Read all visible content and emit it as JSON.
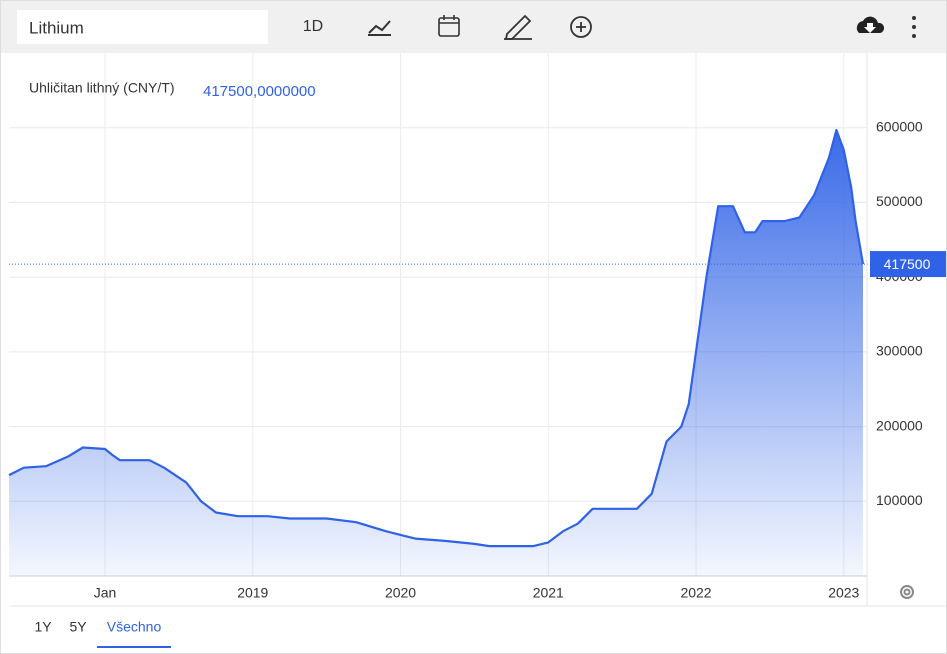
{
  "toolbar": {
    "search": "Lithium",
    "interval": "1D"
  },
  "ranges": [
    "1Y",
    "5Y",
    "Všechno"
  ],
  "chart_data": {
    "type": "area",
    "series": [
      {
        "name": "Uhličitan lithný (CNY/T)",
        "color": "#2f62e6",
        "x": [
          2017.35,
          2017.45,
          2017.6,
          2017.75,
          2017.85,
          2018.0,
          2018.05,
          2018.1,
          2018.3,
          2018.4,
          2018.55,
          2018.65,
          2018.75,
          2018.9,
          2019.1,
          2019.25,
          2019.5,
          2019.7,
          2019.9,
          2020.0,
          2020.1,
          2020.3,
          2020.5,
          2020.6,
          2020.9,
          2021.0,
          2021.1,
          2021.2,
          2021.3,
          2021.5,
          2021.6,
          2021.7,
          2021.8,
          2021.9,
          2021.95,
          2022.0,
          2022.07,
          2022.15,
          2022.25,
          2022.33,
          2022.4,
          2022.45,
          2022.6,
          2022.7,
          2022.8,
          2022.9,
          2022.95,
          2023.0,
          2023.05,
          2023.08,
          2023.13
        ],
        "values": [
          135000,
          145000,
          147000,
          160000,
          172000,
          170000,
          162000,
          155000,
          155000,
          145000,
          125000,
          100000,
          85000,
          80000,
          80000,
          77000,
          77000,
          72000,
          60000,
          55000,
          50000,
          47000,
          43000,
          40000,
          40000,
          45000,
          60000,
          70000,
          90000,
          90000,
          90000,
          110000,
          180000,
          200000,
          230000,
          300000,
          400000,
          495000,
          495000,
          460000,
          460000,
          475000,
          475000,
          480000,
          510000,
          560000,
          597000,
          570000,
          520000,
          475000,
          417500
        ]
      }
    ],
    "header_value": "417500,0000000",
    "last_value": 417500,
    "xlim": [
      2017.35,
      2023.13
    ],
    "xticks": [
      {
        "value": 2018,
        "label": "Jan"
      },
      2019,
      2020,
      2021,
      2022,
      2023
    ],
    "ylim": [
      0,
      700000
    ],
    "yticks": [
      100000,
      200000,
      300000,
      400000,
      500000,
      600000
    ],
    "grid": true
  }
}
